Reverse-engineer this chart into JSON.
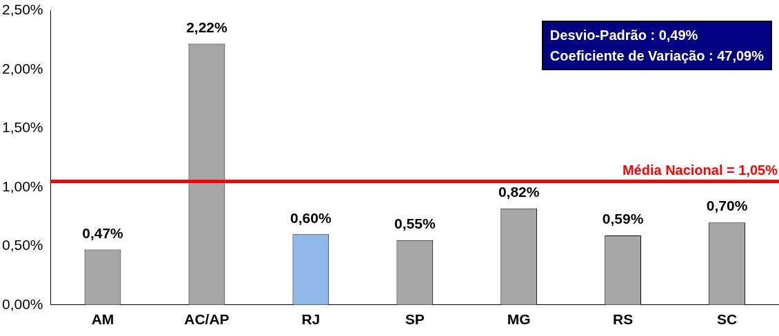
{
  "chart_data": {
    "type": "bar",
    "categories": [
      "AM",
      "AC/AP",
      "RJ",
      "SP",
      "MG",
      "RS",
      "SC"
    ],
    "values": [
      0.47,
      2.22,
      0.6,
      0.55,
      0.82,
      0.59,
      0.7
    ],
    "colors": [
      "#a6a6a6",
      "#a6a6a6",
      "#8fb8e8",
      "#a6a6a6",
      "#a6a6a6",
      "#a6a6a6",
      "#a6a6a6"
    ],
    "value_labels": [
      "0,47%",
      "2,22%",
      "0,60%",
      "0,55%",
      "0,82%",
      "0,59%",
      "0,70%"
    ],
    "ylim": [
      0,
      2.5
    ],
    "yticks": [
      {
        "value": 0,
        "label": "0,00%"
      },
      {
        "value": 0.5,
        "label": "0,50%"
      },
      {
        "value": 1,
        "label": "1,00%"
      },
      {
        "value": 1.5,
        "label": "1,50%"
      },
      {
        "value": 2,
        "label": "2,00%"
      },
      {
        "value": 2.5,
        "label": "2,50%"
      }
    ],
    "ref_lines": [
      {
        "axis": "y",
        "value": 1.05,
        "label": "Média Nacional = 1,05%",
        "color": "#ff0000"
      }
    ],
    "annotations": [
      "Desvio-Padrão : 0,49%",
      "Coeficiente de Variação : 47,09%"
    ]
  }
}
